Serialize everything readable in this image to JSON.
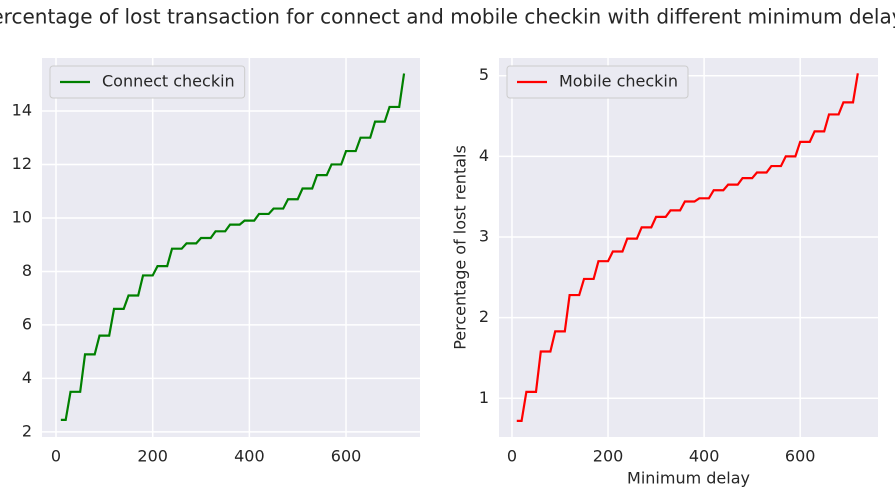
{
  "title": "Percentage of lost transaction for connect and mobile checkin with different minimum delays",
  "chart_data": [
    {
      "type": "line",
      "xlim": [
        -29,
        753
      ],
      "ylim": [
        1.81,
        15.98
      ],
      "xticks": [
        0,
        200,
        400,
        600
      ],
      "yticks": [
        2,
        4,
        6,
        8,
        10,
        12,
        14
      ],
      "grid": true,
      "legend": "upper left",
      "x": [
        10,
        20,
        30,
        50,
        60,
        80,
        90,
        110,
        120,
        140,
        150,
        170,
        180,
        200,
        210,
        230,
        240,
        260,
        270,
        290,
        300,
        320,
        330,
        350,
        360,
        380,
        390,
        410,
        420,
        440,
        450,
        470,
        480,
        500,
        510,
        530,
        540,
        560,
        570,
        590,
        600,
        620,
        630,
        650,
        660,
        680,
        690,
        710,
        720
      ],
      "series": [
        {
          "name": "Connect checkin",
          "color": "green",
          "values": [
            2.45,
            2.45,
            3.5,
            3.5,
            4.9,
            4.9,
            5.6,
            5.6,
            6.6,
            6.6,
            7.1,
            7.1,
            7.85,
            7.85,
            8.2,
            8.2,
            8.85,
            8.85,
            9.05,
            9.05,
            9.25,
            9.25,
            9.5,
            9.5,
            9.75,
            9.75,
            9.9,
            9.9,
            10.15,
            10.15,
            10.35,
            10.35,
            10.7,
            10.7,
            11.1,
            11.1,
            11.6,
            11.6,
            12.0,
            12.0,
            12.5,
            12.5,
            13.0,
            13.0,
            13.6,
            13.6,
            14.15,
            14.15,
            15.4
          ]
        }
      ]
    },
    {
      "type": "line",
      "xlim": [
        -27,
        762
      ],
      "ylim": [
        0.52,
        5.22
      ],
      "xticks": [
        0,
        200,
        400,
        600
      ],
      "yticks": [
        1,
        2,
        3,
        4,
        5
      ],
      "grid": true,
      "legend": "upper left",
      "x_label": "Minimum delay",
      "y_label": "Percentage of lost rentals",
      "x": [
        10,
        20,
        30,
        50,
        60,
        80,
        90,
        110,
        120,
        140,
        150,
        170,
        180,
        200,
        210,
        230,
        240,
        260,
        270,
        290,
        300,
        320,
        330,
        350,
        360,
        380,
        390,
        410,
        420,
        440,
        450,
        470,
        480,
        500,
        510,
        530,
        540,
        560,
        570,
        590,
        600,
        620,
        630,
        650,
        660,
        680,
        690,
        710,
        720
      ],
      "series": [
        {
          "name": "Mobile checkin",
          "color": "red",
          "values": [
            0.72,
            0.72,
            1.08,
            1.08,
            1.58,
            1.58,
            1.83,
            1.83,
            2.28,
            2.28,
            2.48,
            2.48,
            2.7,
            2.7,
            2.82,
            2.82,
            2.98,
            2.98,
            3.12,
            3.12,
            3.25,
            3.25,
            3.33,
            3.33,
            3.44,
            3.44,
            3.48,
            3.48,
            3.58,
            3.58,
            3.65,
            3.65,
            3.73,
            3.73,
            3.8,
            3.8,
            3.88,
            3.88,
            4.0,
            4.0,
            4.18,
            4.18,
            4.31,
            4.31,
            4.52,
            4.52,
            4.67,
            4.67,
            5.03
          ]
        }
      ]
    }
  ]
}
